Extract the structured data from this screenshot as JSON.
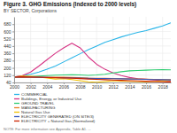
{
  "chart_data": {
    "type": "line",
    "title": "Figure 3. GHG Emissions (Indexed to 2000 levels)",
    "subtitle": "BY SECTOR, Corporations",
    "note": "NOTE: For more information see Appendix, Table A1. ...",
    "x": [
      2000,
      2001,
      2002,
      2003,
      2004,
      2005,
      2006,
      2007,
      2008,
      2009,
      2010,
      2011,
      2012,
      2013,
      2014,
      2015,
      2016,
      2017,
      2018,
      2019
    ],
    "xlim": [
      2000,
      2019
    ],
    "xticks": [
      2000,
      2002,
      2004,
      2006,
      2008,
      2010,
      2012,
      2014,
      2016,
      2018
    ],
    "ylim": [
      40,
      760
    ],
    "yticks": [
      40,
      120,
      200,
      280,
      360,
      440,
      520,
      600,
      680
    ],
    "grid": true,
    "legend": "lower left",
    "series": [
      {
        "name": "COMMERCIAL",
        "color": "#29b5e8",
        "values": [
          100,
          112,
          130,
          155,
          185,
          220,
          265,
          310,
          355,
          400,
          440,
          480,
          510,
          540,
          565,
          590,
          610,
          635,
          660,
          695
        ]
      },
      {
        "name": "Buildings, Energy, or Industrial Use",
        "color": "#d63384",
        "values": [
          100,
          115,
          155,
          220,
          290,
          360,
          420,
          470,
          420,
          320,
          240,
          185,
          145,
          115,
          95,
          82,
          75,
          68,
          62,
          55
        ]
      },
      {
        "name": "GROUND TRAVEL",
        "color": "#2ecc71",
        "values": [
          100,
          102,
          106,
          110,
          116,
          120,
          122,
          125,
          122,
          118,
          122,
          130,
          145,
          158,
          168,
          172,
          175,
          178,
          180,
          178
        ]
      },
      {
        "name": "MANUFACTURING",
        "color": "#e67e22",
        "values": [
          100,
          97,
          96,
          95,
          96,
          97,
          97,
          96,
          92,
          87,
          86,
          85,
          84,
          82,
          80,
          78,
          76,
          74,
          72,
          70
        ]
      },
      {
        "name": "Natural Gas Use",
        "color": "#f0c000",
        "values": [
          100,
          110,
          108,
          100,
          88,
          78,
          82,
          72,
          60,
          48,
          42,
          50,
          60,
          55,
          52,
          50,
          48,
          52,
          58,
          62
        ]
      },
      {
        "name": "ELECTRICITY GENERATED (ON SITE/3)",
        "color": "#3355bb",
        "values": [
          100,
          99,
          98,
          97,
          95,
          93,
          92,
          90,
          88,
          85,
          84,
          83,
          82,
          80,
          78,
          76,
          74,
          72,
          70,
          68
        ]
      },
      {
        "name": "ELECTRICITY + Natural Gas (Normalized)",
        "color": "#cc2200",
        "values": [
          100,
          102,
          100,
          98,
          95,
          92,
          90,
          87,
          83,
          78,
          74,
          70,
          67,
          63,
          60,
          57,
          53,
          50,
          47,
          44
        ]
      }
    ]
  }
}
